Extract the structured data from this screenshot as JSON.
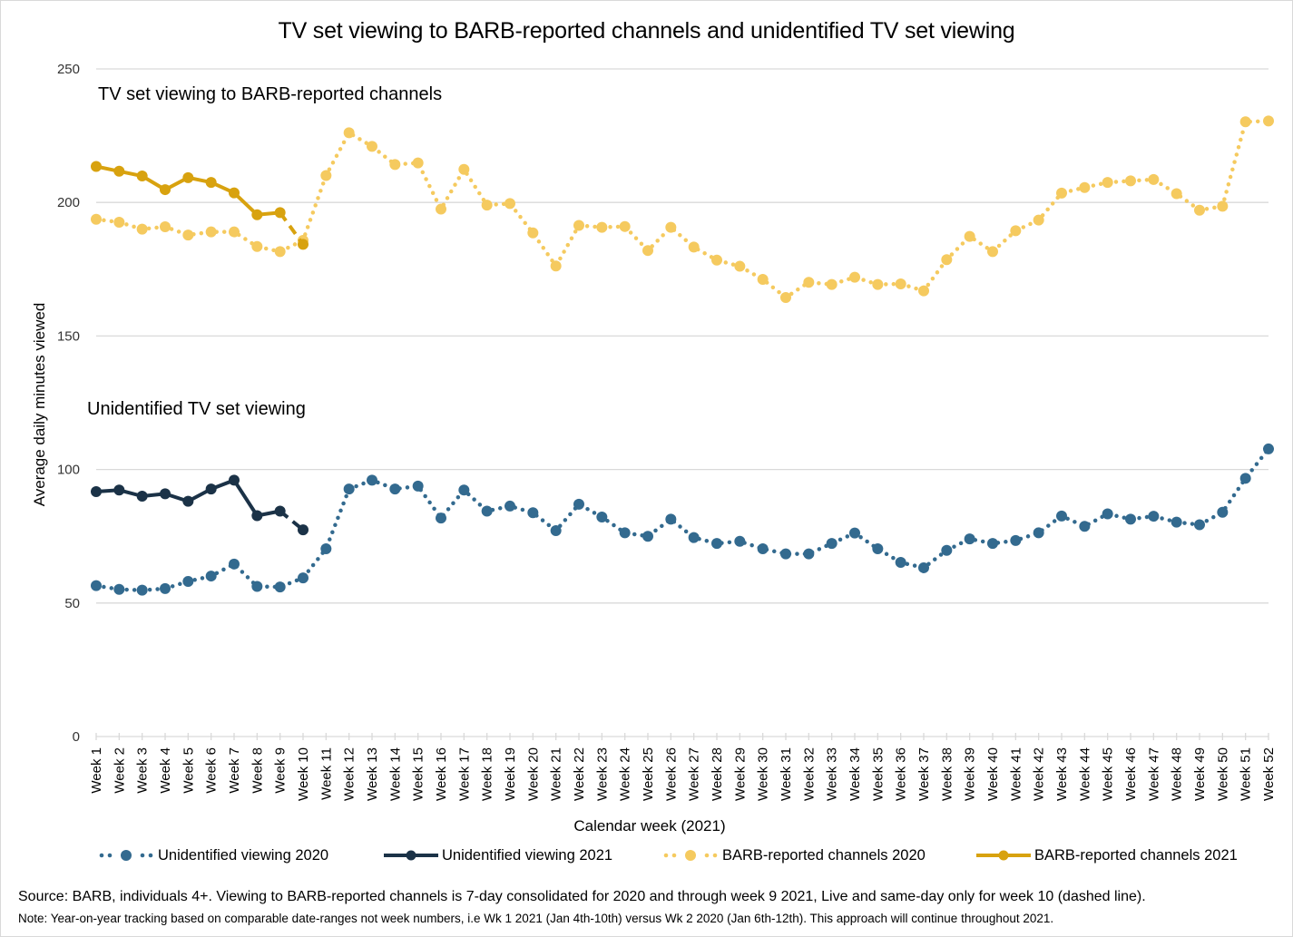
{
  "chart_data": {
    "type": "line",
    "title": "TV set viewing to BARB-reported channels and unidentified TV set viewing",
    "xlabel": "Calendar week (2021)",
    "ylabel": "Average daily minutes viewed",
    "ylim": [
      0,
      250
    ],
    "yticks": [
      0,
      50,
      100,
      150,
      200,
      250
    ],
    "ytick_labels": [
      "0",
      "50",
      "100",
      "150",
      "200",
      "250"
    ],
    "grid": "horizontal",
    "legend_position": "bottom",
    "categories": [
      "Week 1",
      "Week 2",
      "Week 3",
      "Week 4",
      "Week 5",
      "Week 6",
      "Week 7",
      "Week 8",
      "Week 9",
      "Week 10",
      "Week 11",
      "Week 12",
      "Week 13",
      "Week 14",
      "Week 15",
      "Week 16",
      "Week 17",
      "Week 18",
      "Week 19",
      "Week 20",
      "Week 21",
      "Week 22",
      "Week 23",
      "Week 24",
      "Week 25",
      "Week 26",
      "Week 27",
      "Week 28",
      "Week 29",
      "Week 30",
      "Week 31",
      "Week 32",
      "Week 33",
      "Week 34",
      "Week 35",
      "Week 36",
      "Week 37",
      "Week 38",
      "Week 39",
      "Week 40",
      "Week 41",
      "Week 42",
      "Week 43",
      "Week 44",
      "Week 45",
      "Week 46",
      "Week 47",
      "Week 48",
      "Week 49",
      "Week 50",
      "Week 51",
      "Week 52"
    ],
    "annotations": [
      {
        "text": "TV set viewing to BARB-reported channels",
        "group": "barb"
      },
      {
        "text": "Unidentified TV set viewing",
        "group": "unidentified"
      }
    ],
    "series": [
      {
        "name": "Unidentified viewing 2020",
        "style": "dotted-markers",
        "color": "#336A8F",
        "values": [
          56.5,
          55.1,
          54.8,
          55.4,
          58.1,
          60.1,
          64.6,
          56.2,
          56.0,
          59.4,
          70.3,
          92.7,
          96.0,
          92.7,
          93.8,
          81.8,
          92.3,
          84.4,
          86.3,
          83.8,
          77.1,
          87.0,
          82.2,
          76.3,
          75.0,
          81.4,
          74.5,
          72.3,
          73.1,
          70.3,
          68.4,
          68.4,
          72.3,
          76.2,
          70.3,
          65.2,
          63.2,
          69.7,
          74.0,
          72.3,
          73.4,
          76.3,
          82.6,
          78.7,
          83.4,
          81.4,
          82.5,
          80.3,
          79.3,
          84.0,
          96.7,
          107.7
        ]
      },
      {
        "name": "Unidentified viewing 2021",
        "style": "solid-markers",
        "color": "#1B3247",
        "dashed_last_segment": true,
        "values": [
          91.7,
          92.3,
          90.0,
          90.9,
          88.1,
          92.7,
          96.0,
          82.7,
          84.4,
          77.4
        ]
      },
      {
        "name": "BARB-reported channels 2020",
        "style": "dotted-markers",
        "color": "#F5CA5F",
        "values": [
          193.7,
          192.6,
          190.0,
          190.9,
          187.8,
          189.0,
          189.0,
          183.5,
          181.6,
          185.8,
          210.1,
          226.1,
          221.0,
          214.2,
          214.8,
          197.5,
          212.4,
          199.0,
          199.6,
          188.6,
          176.2,
          191.4,
          190.7,
          191.0,
          182.0,
          190.7,
          183.3,
          178.4,
          176.1,
          171.2,
          164.4,
          170.1,
          169.3,
          172.0,
          169.3,
          169.5,
          166.9,
          178.6,
          187.3,
          181.6,
          189.4,
          193.4,
          203.5,
          205.6,
          207.5,
          208.1,
          208.6,
          203.3,
          197.1,
          198.6,
          230.2,
          230.5
        ]
      },
      {
        "name": "BARB-reported channels 2021",
        "style": "solid-markers",
        "color": "#D8A20F",
        "dashed_last_segment": true,
        "values": [
          213.5,
          211.7,
          209.9,
          204.8,
          209.3,
          207.5,
          203.6,
          195.4,
          196.2,
          184.3
        ]
      }
    ]
  },
  "footnotes": {
    "source": "Source: BARB, individuals 4+. Viewing to BARB-reported channels is 7-day consolidated for 2020 and through week 9 2021, Live and same-day only for week 10 (dashed line).",
    "note": "Note: Year-on-year tracking based on comparable date-ranges not week numbers, i.e Wk 1 2021 (Jan 4th-10th) versus Wk 2 2020 (Jan 6th-12th). This approach will continue throughout 2021."
  }
}
